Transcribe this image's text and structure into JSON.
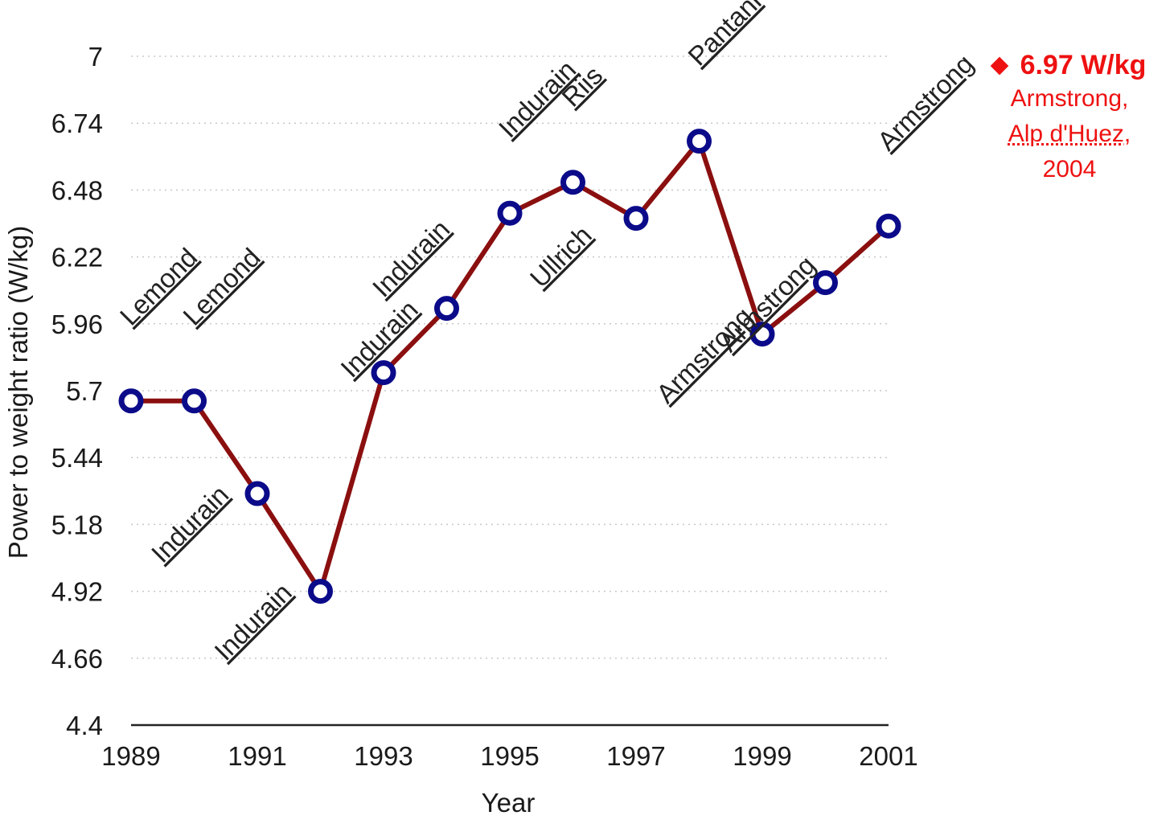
{
  "chart_data": {
    "type": "line",
    "xlabel": "Year",
    "ylabel": "Power to weight ratio (W/kg)",
    "ylim": [
      4.4,
      7
    ],
    "xlim": [
      1989,
      2001
    ],
    "yticks": [
      "4.4",
      "4.66",
      "4.92",
      "5.18",
      "5.44",
      "5.7",
      "5.96",
      "6.22",
      "6.48",
      "6.74",
      "7"
    ],
    "xticks": [
      "1989",
      "1991",
      "1993",
      "1995",
      "1997",
      "1999",
      "2001"
    ],
    "grid": true,
    "points": [
      {
        "x": 1989,
        "y": 5.66,
        "label": "Lemond",
        "label_pos": "above"
      },
      {
        "x": 1990,
        "y": 5.66,
        "label": "Lemond",
        "label_pos": "above"
      },
      {
        "x": 1991,
        "y": 5.3,
        "label": "Indurain",
        "label_pos": "below"
      },
      {
        "x": 1992,
        "y": 4.92,
        "label": "Indurain",
        "label_pos": "below"
      },
      {
        "x": 1993,
        "y": 5.77,
        "label": "Indurain",
        "label_pos": "above"
      },
      {
        "x": 1994,
        "y": 6.02,
        "label": "Indurain",
        "label_pos": "below"
      },
      {
        "x": 1995,
        "y": 6.39,
        "label": "Indurain",
        "label_pos": "above"
      },
      {
        "x": 1996,
        "y": 6.51,
        "label": "Riis",
        "label_pos": "above"
      },
      {
        "x": 1997,
        "y": 6.37,
        "label": "Ullrich",
        "label_pos": "below"
      },
      {
        "x": 1998,
        "y": 6.67,
        "label": "Pantani",
        "label_pos": "above"
      },
      {
        "x": 1999,
        "y": 5.92,
        "label": "Armstrong",
        "label_pos": "below"
      },
      {
        "x": 2000,
        "y": 6.12,
        "label": "Armstrong",
        "label_pos": "below"
      },
      {
        "x": 2001,
        "y": 6.34,
        "label": "Armstrong",
        "label_pos": "above"
      }
    ],
    "colors": {
      "line": "#8b0f0f",
      "marker": "#0b0b8a",
      "callout": "#ee1111"
    }
  },
  "callout": {
    "value": "6.97 W/kg",
    "line1": "Armstrong,",
    "line2": "Alp d'Huez,",
    "line3": "2004"
  }
}
